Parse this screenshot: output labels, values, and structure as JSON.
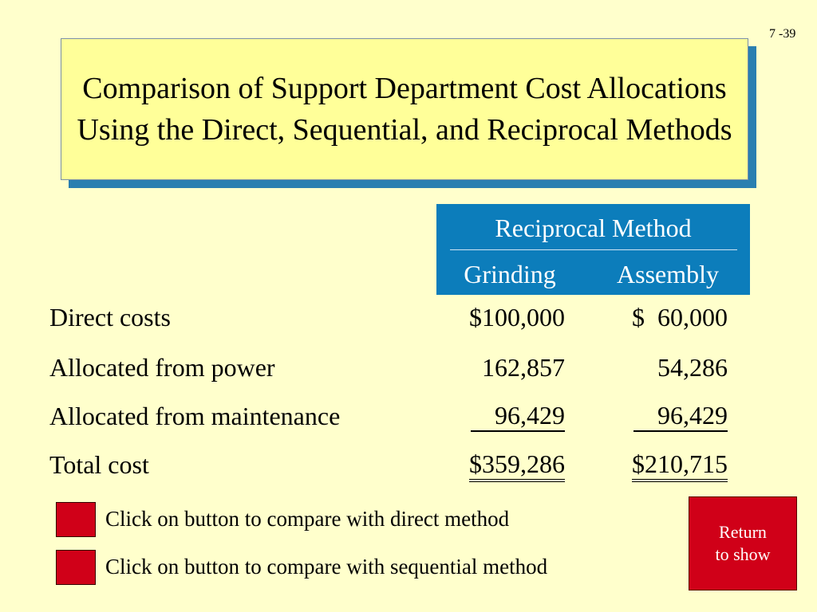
{
  "slide_number": "7 -39",
  "title": "Comparison of Support Department Cost Allocations Using the Direct, Sequential, and Reciprocal Methods",
  "table": {
    "method": "Reciprocal Method",
    "columns": [
      "Grinding",
      "Assembly"
    ],
    "rows": [
      {
        "label": "Direct costs",
        "grinding": "$100,000",
        "assembly": "$  60,000"
      },
      {
        "label": "Allocated from power",
        "grinding": "162,857",
        "assembly": "54,286"
      },
      {
        "label": "Allocated from maintenance",
        "grinding": "96,429",
        "assembly": "96,429"
      },
      {
        "label": "Total cost",
        "grinding": "$359,286",
        "assembly": "$210,715"
      }
    ]
  },
  "buttons": {
    "compare_direct": "Click on button to compare with direct method",
    "compare_sequential": "Click on button to compare with sequential method",
    "return_line1": "Return",
    "return_line2": "to show"
  },
  "colors": {
    "background": "#ffffcc",
    "title_fill": "#ffff99",
    "header_fill": "#0c7dbb",
    "button_red": "#d00018"
  }
}
